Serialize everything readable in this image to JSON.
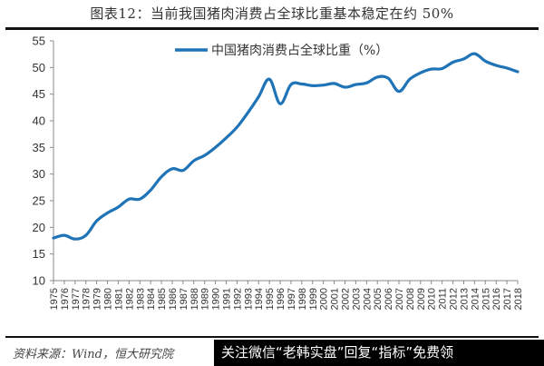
{
  "header": {
    "title": "图表12：当前我国猪肉消费占全球比重基本稳定在约 50%"
  },
  "footer": {
    "source": "资料来源：Wind，恒大研究院",
    "watermark": "关注微信“老韩实盘”回复“指标”免费领"
  },
  "colors": {
    "series": "#1f73b7",
    "axis": "#888888",
    "text": "#333333"
  },
  "chart_data": {
    "type": "line",
    "title": "图表12：当前我国猪肉消费占全球比重基本稳定在约 50%",
    "xlabel": "",
    "ylabel": "",
    "ylim": [
      10,
      55
    ],
    "yticks": [
      10,
      15,
      20,
      25,
      30,
      35,
      40,
      45,
      50,
      55
    ],
    "grid": false,
    "legend_position": "top-center",
    "x": [
      "1975",
      "1976",
      "1977",
      "1978",
      "1979",
      "1980",
      "1981",
      "1982",
      "1983",
      "1984",
      "1985",
      "1986",
      "1987",
      "1988",
      "1989",
      "1990",
      "1991",
      "1992",
      "1993",
      "1994",
      "1995",
      "1996",
      "1997",
      "1998",
      "1999",
      "2000",
      "2001",
      "2002",
      "2003",
      "2004",
      "2005",
      "2006",
      "2007",
      "2008",
      "2009",
      "2010",
      "2011",
      "2012",
      "2013",
      "2014",
      "2015",
      "2016",
      "2017",
      "2018"
    ],
    "series": [
      {
        "name": "中国猪肉消费占全球比重（%）",
        "values": [
          18.0,
          18.5,
          17.8,
          18.5,
          21.2,
          22.7,
          23.8,
          25.3,
          25.3,
          27.0,
          29.5,
          31.0,
          30.7,
          32.5,
          33.5,
          35.0,
          36.8,
          38.8,
          41.5,
          44.5,
          47.8,
          43.2,
          46.8,
          46.9,
          46.6,
          46.7,
          47.0,
          46.3,
          46.8,
          47.1,
          48.2,
          48.0,
          45.5,
          47.8,
          49.0,
          49.7,
          49.8,
          51.0,
          51.6,
          52.6,
          51.2,
          50.4,
          49.9,
          49.2
        ]
      }
    ]
  }
}
